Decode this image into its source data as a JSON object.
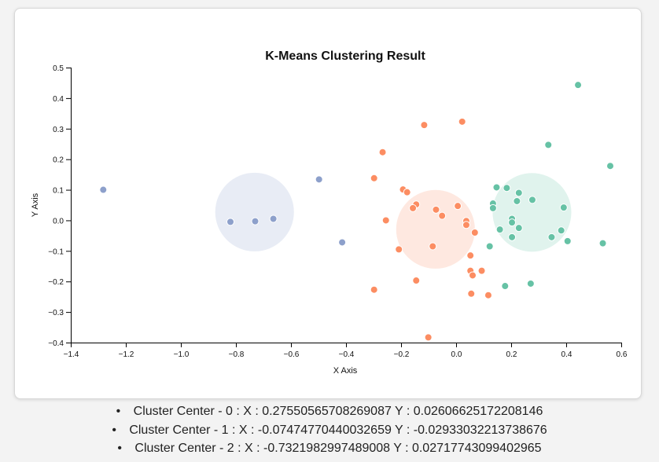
{
  "chart_data": {
    "type": "scatter",
    "title": "K-Means Clustering Result",
    "xlabel": "X Axis",
    "ylabel": "Y Axis",
    "xlim": [
      -1.4,
      0.6
    ],
    "ylim": [
      -0.4,
      0.5
    ],
    "x_ticks": [
      -1.4,
      -1.2,
      -1.0,
      -0.8,
      -0.6,
      -0.4,
      -0.2,
      0.0,
      0.2,
      0.4,
      0.6
    ],
    "y_ticks": [
      -0.4,
      -0.3,
      -0.2,
      -0.1,
      0.0,
      0.1,
      0.2,
      0.3,
      0.4,
      0.5
    ],
    "x_tick_labels": [
      "−1.4",
      "−1.2",
      "−1.0",
      "−0.8",
      "−0.6",
      "−0.4",
      "−0.2",
      "0.0",
      "0.2",
      "0.4",
      "0.6"
    ],
    "y_tick_labels": [
      "−0.4",
      "−0.3",
      "−0.2",
      "−0.1",
      "0.0",
      "0.1",
      "0.2",
      "0.3",
      "0.4",
      "0.5"
    ],
    "grid": false,
    "cluster_radius": 0.143,
    "clusters": [
      {
        "id": 0,
        "color": "#66c2a5",
        "center": [
          0.27550565708269087,
          0.02606625172208146
        ],
        "points": [
          [
            0.443,
            0.443
          ],
          [
            0.335,
            0.247
          ],
          [
            0.56,
            0.178
          ],
          [
            0.147,
            0.108
          ],
          [
            0.184,
            0.106
          ],
          [
            0.228,
            0.09
          ],
          [
            0.277,
            0.067
          ],
          [
            0.221,
            0.063
          ],
          [
            0.134,
            0.055
          ],
          [
            0.391,
            0.042
          ],
          [
            0.134,
            0.04
          ],
          [
            0.203,
            0.005
          ],
          [
            0.203,
            -0.007
          ],
          [
            0.228,
            -0.025
          ],
          [
            0.159,
            -0.03
          ],
          [
            0.382,
            -0.033
          ],
          [
            0.203,
            -0.055
          ],
          [
            0.347,
            -0.055
          ],
          [
            0.405,
            -0.068
          ],
          [
            0.533,
            -0.075
          ],
          [
            0.122,
            -0.085
          ],
          [
            0.271,
            -0.207
          ],
          [
            0.178,
            -0.215
          ]
        ]
      },
      {
        "id": 1,
        "color": "#fc8d62",
        "center": [
          -0.07474770440032659,
          -0.02933032213738676
        ],
        "points": [
          [
            -0.116,
            0.312
          ],
          [
            0.022,
            0.323
          ],
          [
            -0.267,
            0.223
          ],
          [
            -0.298,
            0.138
          ],
          [
            -0.193,
            0.101
          ],
          [
            -0.178,
            0.092
          ],
          [
            -0.145,
            0.052
          ],
          [
            -0.157,
            0.04
          ],
          [
            -0.073,
            0.035
          ],
          [
            0.006,
            0.047
          ],
          [
            -0.051,
            0.015
          ],
          [
            -0.255,
            0
          ],
          [
            0.037,
            -0.002
          ],
          [
            0.037,
            -0.015
          ],
          [
            0.068,
            -0.04
          ],
          [
            -0.208,
            -0.095
          ],
          [
            -0.085,
            -0.085
          ],
          [
            0.052,
            -0.115
          ],
          [
            0.052,
            -0.165
          ],
          [
            0.093,
            -0.165
          ],
          [
            0.06,
            -0.18
          ],
          [
            -0.145,
            -0.197
          ],
          [
            -0.298,
            -0.227
          ],
          [
            0.055,
            -0.24
          ],
          [
            0.117,
            -0.245
          ],
          [
            -0.101,
            -0.383
          ]
        ]
      },
      {
        "id": 2,
        "color": "#8da0cb",
        "center": [
          -0.7321982997489008,
          0.02717743099402965
        ],
        "points": [
          [
            -1.282,
            0.1
          ],
          [
            -0.498,
            0.134
          ],
          [
            -0.664,
            0.005
          ],
          [
            -0.73,
            -0.003
          ],
          [
            -0.82,
            -0.005
          ],
          [
            -0.414,
            -0.072
          ]
        ]
      }
    ]
  },
  "center_list": [
    "Cluster Center - 0 : X : 0.27550565708269087 Y : 0.02606625172208146",
    "Cluster Center - 1 : X : -0.07474770440032659 Y : -0.02933032213738676",
    "Cluster Center - 2 : X : -0.7321982997489008 Y : 0.02717743099402965"
  ]
}
